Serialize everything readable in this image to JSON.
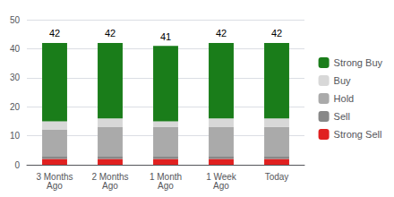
{
  "chart_data": {
    "type": "bar",
    "stacked": true,
    "categories": [
      "3 Months\nAgo",
      "2 Months\nAgo",
      "1 Month\nAgo",
      "1 Week\nAgo",
      "Today"
    ],
    "series": [
      {
        "name": "Strong Sell",
        "color": "#e02020",
        "values": [
          2,
          2,
          2,
          2,
          2
        ]
      },
      {
        "name": "Sell",
        "color": "#888888",
        "values": [
          1,
          1,
          1,
          1,
          1
        ]
      },
      {
        "name": "Hold",
        "color": "#aaaaaa",
        "values": [
          9,
          10,
          10,
          10,
          10
        ]
      },
      {
        "name": "Buy",
        "color": "#d8d8d8",
        "values": [
          3,
          3,
          2,
          3,
          3
        ]
      },
      {
        "name": "Strong Buy",
        "color": "#1a7d1a",
        "values": [
          27,
          26,
          26,
          26,
          26
        ]
      }
    ],
    "totals": [
      42,
      42,
      41,
      42,
      42
    ],
    "ylim": [
      0,
      50
    ],
    "yticks": [
      0,
      10,
      20,
      30,
      40,
      50
    ],
    "grid": true,
    "legend": "right"
  }
}
